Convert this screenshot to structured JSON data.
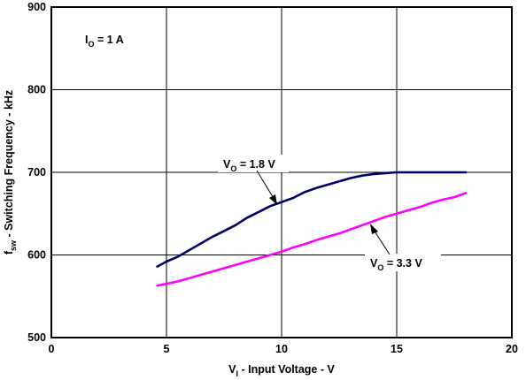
{
  "chart_data": {
    "type": "line",
    "xlim": [
      0,
      20
    ],
    "ylim": [
      500,
      900
    ],
    "x_ticks": [
      "0",
      "5",
      "10",
      "15",
      "20"
    ],
    "y_ticks": [
      "500",
      "600",
      "700",
      "800",
      "900"
    ],
    "xlabel": {
      "main": "V",
      "sub": "I",
      "rest": " - Input Voltage - V"
    },
    "ylabel": {
      "main": "f",
      "sub": "sw",
      "rest": " - Switching Frequency - kHz"
    },
    "grid": true,
    "condition": {
      "main": "I",
      "sub": "O",
      "rest": " = 1 A"
    },
    "series": [
      {
        "color": "#000066",
        "label": {
          "main": "V",
          "sub": "O",
          "rest": " = 1.8 V"
        },
        "points": [
          [
            4.6,
            586
          ],
          [
            5,
            592
          ],
          [
            5.5,
            598
          ],
          [
            6,
            606
          ],
          [
            6.5,
            614
          ],
          [
            7,
            622
          ],
          [
            7.5,
            629
          ],
          [
            8,
            636
          ],
          [
            8.5,
            645
          ],
          [
            9,
            652
          ],
          [
            9.5,
            659
          ],
          [
            10,
            664
          ],
          [
            10.5,
            669
          ],
          [
            11,
            676
          ],
          [
            11.5,
            681
          ],
          [
            12,
            685
          ],
          [
            12.5,
            689
          ],
          [
            13,
            693
          ],
          [
            13.5,
            696
          ],
          [
            14,
            698
          ],
          [
            14.5,
            699
          ],
          [
            15,
            700
          ],
          [
            15.5,
            700
          ],
          [
            16,
            700
          ],
          [
            16.5,
            700
          ],
          [
            17,
            700
          ],
          [
            17.5,
            700
          ],
          [
            18,
            700
          ]
        ]
      },
      {
        "color": "#ff00ff",
        "label": {
          "main": "V",
          "sub": "O",
          "rest": " = 3.3 V"
        },
        "points": [
          [
            4.6,
            563
          ],
          [
            5,
            565
          ],
          [
            5.5,
            568
          ],
          [
            6,
            572
          ],
          [
            6.5,
            576
          ],
          [
            7,
            580
          ],
          [
            7.5,
            584
          ],
          [
            8,
            588
          ],
          [
            8.5,
            592
          ],
          [
            9,
            596
          ],
          [
            9.5,
            600
          ],
          [
            10,
            604
          ],
          [
            10.5,
            609
          ],
          [
            11,
            613
          ],
          [
            11.5,
            618
          ],
          [
            12,
            622
          ],
          [
            12.5,
            626
          ],
          [
            13,
            631
          ],
          [
            13.5,
            636
          ],
          [
            14,
            641
          ],
          [
            14.5,
            646
          ],
          [
            15,
            650
          ],
          [
            15.5,
            654
          ],
          [
            16,
            658
          ],
          [
            16.5,
            663
          ],
          [
            17,
            667
          ],
          [
            17.5,
            670
          ],
          [
            18,
            675
          ]
        ]
      }
    ]
  }
}
